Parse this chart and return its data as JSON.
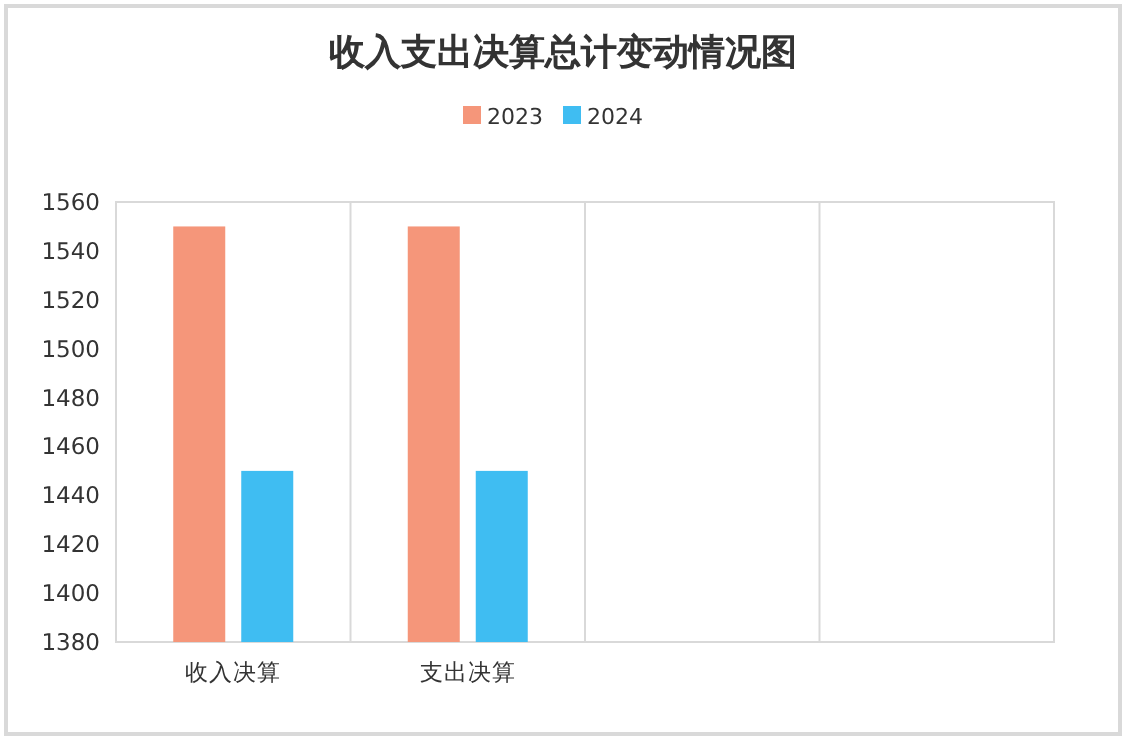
{
  "chart_data": {
    "type": "bar",
    "title": "收入支出决算总计变动情况图",
    "categories": [
      "收入决算",
      "支出决算",
      null,
      null
    ],
    "series": [
      {
        "name": "2023",
        "color": "#f5967a",
        "values": [
          1550,
          1550,
          null,
          null
        ]
      },
      {
        "name": "2024",
        "color": "#3fbdf2",
        "values": [
          1450,
          1450,
          null,
          null
        ]
      }
    ],
    "ylim": [
      1380,
      1560
    ],
    "yticks": [
      1380,
      1400,
      1420,
      1440,
      1460,
      1480,
      1500,
      1520,
      1540,
      1560
    ],
    "grid": "x",
    "legend": "top"
  }
}
